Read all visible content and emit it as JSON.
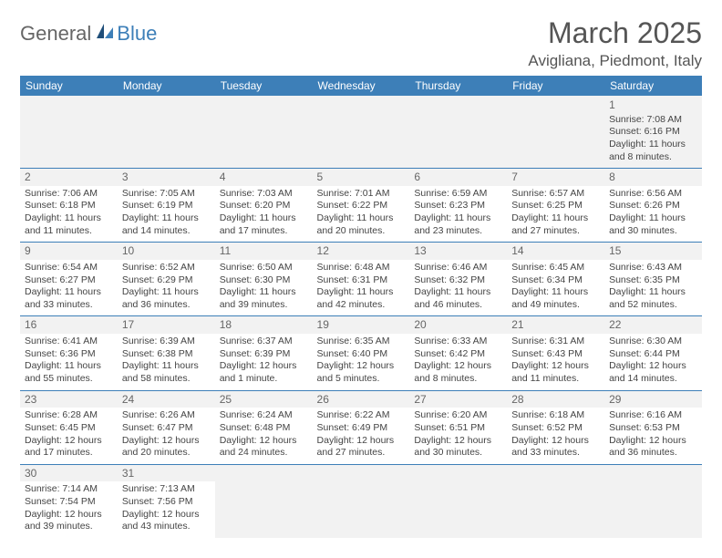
{
  "logo": {
    "text1": "General",
    "text2": "Blue"
  },
  "title": "March 2025",
  "location": "Avigliana, Piedmont, Italy",
  "headers": [
    "Sunday",
    "Monday",
    "Tuesday",
    "Wednesday",
    "Thursday",
    "Friday",
    "Saturday"
  ],
  "colors": {
    "header_bg": "#3d7fb8",
    "header_text": "#ffffff",
    "cell_border": "#3d7fb8",
    "alt_row_bg": "#f2f2f2",
    "text": "#444444",
    "title_text": "#555555"
  },
  "weeks": [
    [
      null,
      null,
      null,
      null,
      null,
      null,
      {
        "n": "1",
        "sr": "Sunrise: 7:08 AM",
        "ss": "Sunset: 6:16 PM",
        "dl": "Daylight: 11 hours and 8 minutes."
      }
    ],
    [
      {
        "n": "2",
        "sr": "Sunrise: 7:06 AM",
        "ss": "Sunset: 6:18 PM",
        "dl": "Daylight: 11 hours and 11 minutes."
      },
      {
        "n": "3",
        "sr": "Sunrise: 7:05 AM",
        "ss": "Sunset: 6:19 PM",
        "dl": "Daylight: 11 hours and 14 minutes."
      },
      {
        "n": "4",
        "sr": "Sunrise: 7:03 AM",
        "ss": "Sunset: 6:20 PM",
        "dl": "Daylight: 11 hours and 17 minutes."
      },
      {
        "n": "5",
        "sr": "Sunrise: 7:01 AM",
        "ss": "Sunset: 6:22 PM",
        "dl": "Daylight: 11 hours and 20 minutes."
      },
      {
        "n": "6",
        "sr": "Sunrise: 6:59 AM",
        "ss": "Sunset: 6:23 PM",
        "dl": "Daylight: 11 hours and 23 minutes."
      },
      {
        "n": "7",
        "sr": "Sunrise: 6:57 AM",
        "ss": "Sunset: 6:25 PM",
        "dl": "Daylight: 11 hours and 27 minutes."
      },
      {
        "n": "8",
        "sr": "Sunrise: 6:56 AM",
        "ss": "Sunset: 6:26 PM",
        "dl": "Daylight: 11 hours and 30 minutes."
      }
    ],
    [
      {
        "n": "9",
        "sr": "Sunrise: 6:54 AM",
        "ss": "Sunset: 6:27 PM",
        "dl": "Daylight: 11 hours and 33 minutes."
      },
      {
        "n": "10",
        "sr": "Sunrise: 6:52 AM",
        "ss": "Sunset: 6:29 PM",
        "dl": "Daylight: 11 hours and 36 minutes."
      },
      {
        "n": "11",
        "sr": "Sunrise: 6:50 AM",
        "ss": "Sunset: 6:30 PM",
        "dl": "Daylight: 11 hours and 39 minutes."
      },
      {
        "n": "12",
        "sr": "Sunrise: 6:48 AM",
        "ss": "Sunset: 6:31 PM",
        "dl": "Daylight: 11 hours and 42 minutes."
      },
      {
        "n": "13",
        "sr": "Sunrise: 6:46 AM",
        "ss": "Sunset: 6:32 PM",
        "dl": "Daylight: 11 hours and 46 minutes."
      },
      {
        "n": "14",
        "sr": "Sunrise: 6:45 AM",
        "ss": "Sunset: 6:34 PM",
        "dl": "Daylight: 11 hours and 49 minutes."
      },
      {
        "n": "15",
        "sr": "Sunrise: 6:43 AM",
        "ss": "Sunset: 6:35 PM",
        "dl": "Daylight: 11 hours and 52 minutes."
      }
    ],
    [
      {
        "n": "16",
        "sr": "Sunrise: 6:41 AM",
        "ss": "Sunset: 6:36 PM",
        "dl": "Daylight: 11 hours and 55 minutes."
      },
      {
        "n": "17",
        "sr": "Sunrise: 6:39 AM",
        "ss": "Sunset: 6:38 PM",
        "dl": "Daylight: 11 hours and 58 minutes."
      },
      {
        "n": "18",
        "sr": "Sunrise: 6:37 AM",
        "ss": "Sunset: 6:39 PM",
        "dl": "Daylight: 12 hours and 1 minute."
      },
      {
        "n": "19",
        "sr": "Sunrise: 6:35 AM",
        "ss": "Sunset: 6:40 PM",
        "dl": "Daylight: 12 hours and 5 minutes."
      },
      {
        "n": "20",
        "sr": "Sunrise: 6:33 AM",
        "ss": "Sunset: 6:42 PM",
        "dl": "Daylight: 12 hours and 8 minutes."
      },
      {
        "n": "21",
        "sr": "Sunrise: 6:31 AM",
        "ss": "Sunset: 6:43 PM",
        "dl": "Daylight: 12 hours and 11 minutes."
      },
      {
        "n": "22",
        "sr": "Sunrise: 6:30 AM",
        "ss": "Sunset: 6:44 PM",
        "dl": "Daylight: 12 hours and 14 minutes."
      }
    ],
    [
      {
        "n": "23",
        "sr": "Sunrise: 6:28 AM",
        "ss": "Sunset: 6:45 PM",
        "dl": "Daylight: 12 hours and 17 minutes."
      },
      {
        "n": "24",
        "sr": "Sunrise: 6:26 AM",
        "ss": "Sunset: 6:47 PM",
        "dl": "Daylight: 12 hours and 20 minutes."
      },
      {
        "n": "25",
        "sr": "Sunrise: 6:24 AM",
        "ss": "Sunset: 6:48 PM",
        "dl": "Daylight: 12 hours and 24 minutes."
      },
      {
        "n": "26",
        "sr": "Sunrise: 6:22 AM",
        "ss": "Sunset: 6:49 PM",
        "dl": "Daylight: 12 hours and 27 minutes."
      },
      {
        "n": "27",
        "sr": "Sunrise: 6:20 AM",
        "ss": "Sunset: 6:51 PM",
        "dl": "Daylight: 12 hours and 30 minutes."
      },
      {
        "n": "28",
        "sr": "Sunrise: 6:18 AM",
        "ss": "Sunset: 6:52 PM",
        "dl": "Daylight: 12 hours and 33 minutes."
      },
      {
        "n": "29",
        "sr": "Sunrise: 6:16 AM",
        "ss": "Sunset: 6:53 PM",
        "dl": "Daylight: 12 hours and 36 minutes."
      }
    ],
    [
      {
        "n": "30",
        "sr": "Sunrise: 7:14 AM",
        "ss": "Sunset: 7:54 PM",
        "dl": "Daylight: 12 hours and 39 minutes."
      },
      {
        "n": "31",
        "sr": "Sunrise: 7:13 AM",
        "ss": "Sunset: 7:56 PM",
        "dl": "Daylight: 12 hours and 43 minutes."
      },
      null,
      null,
      null,
      null,
      null
    ]
  ]
}
